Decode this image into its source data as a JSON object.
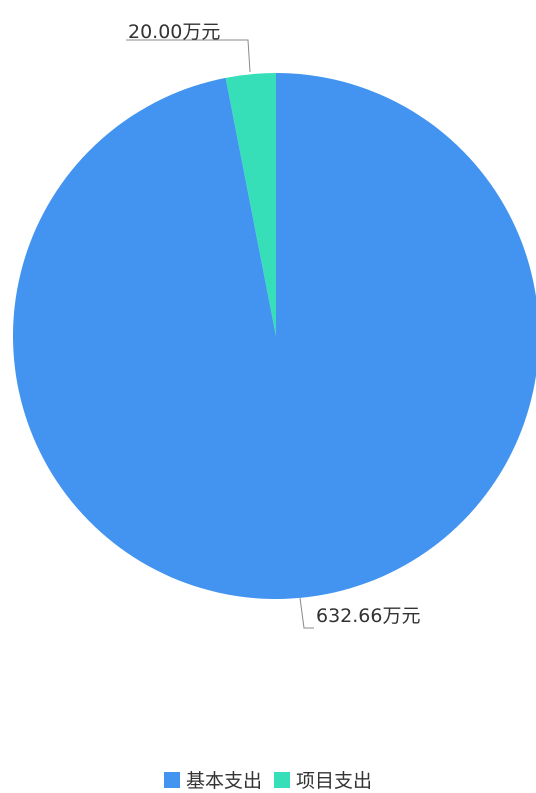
{
  "chart_data": {
    "type": "pie",
    "categories": [
      "基本支出",
      "项目支出"
    ],
    "values": [
      632.66,
      20.0
    ],
    "labels": [
      "632.66万元",
      "20.00万元"
    ],
    "colors": [
      "#4394f1",
      "#36dfb8"
    ],
    "unit": "万元",
    "legend": "bottom-center"
  }
}
